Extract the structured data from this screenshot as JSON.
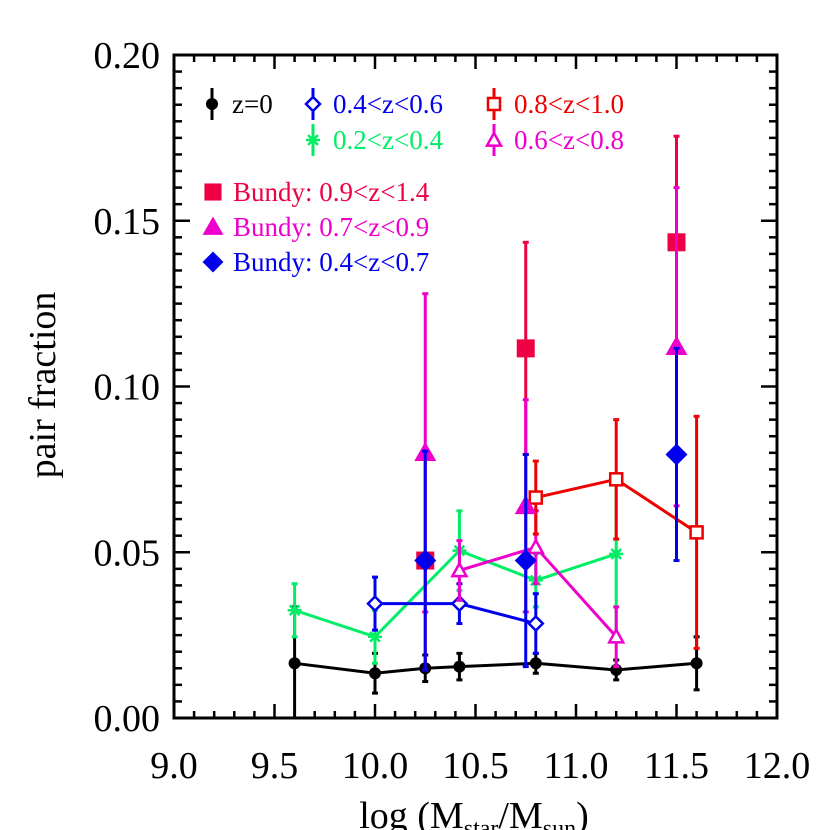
{
  "chart_data": {
    "type": "line",
    "ylabel": "pair fraction",
    "xlabel": "log (M",
    "xlabel_sub1": "star",
    "xlabel_mid": "/M",
    "xlabel_sub2": "sun",
    "xlabel_end": ")",
    "xlim": [
      9.0,
      12.0
    ],
    "ylim": [
      0.0,
      0.2
    ],
    "x_ticks": [
      9.0,
      9.5,
      10.0,
      10.5,
      11.0,
      11.5,
      12.0
    ],
    "x_tick_labels": [
      "9.0",
      "9.5",
      "10.0",
      "10.5",
      "11.0",
      "11.5",
      "12.0"
    ],
    "y_ticks": [
      0.0,
      0.05,
      0.1,
      0.15,
      0.2
    ],
    "y_tick_labels": [
      "0.00",
      "0.05",
      "0.10",
      "0.15",
      "0.20"
    ],
    "legend_position": "top-left",
    "series": [
      {
        "name": "z=0",
        "color": "#000000",
        "marker": "filled-circle",
        "line": true,
        "x": [
          9.6,
          10.0,
          10.25,
          10.42,
          10.8,
          11.2,
          11.6
        ],
        "y": [
          0.0165,
          0.0135,
          0.015,
          0.0155,
          0.0165,
          0.0145,
          0.0165
        ],
        "err": [
          0.017,
          0.006,
          0.004,
          0.004,
          0.003,
          0.003,
          0.008
        ]
      },
      {
        "name": "0.2<z<0.4",
        "color": "#00ee66",
        "marker": "asterisk",
        "line": true,
        "x": [
          9.6,
          10.0,
          10.42,
          10.8,
          11.2
        ],
        "y": [
          0.0325,
          0.0245,
          0.0505,
          0.0415,
          0.0495
        ],
        "err": [
          0.008,
          0.008,
          0.012,
          0.008,
          0.024
        ]
      },
      {
        "name": "0.4<z<0.6",
        "color": "#0000ee",
        "marker": "open-diamond",
        "line": true,
        "x": [
          10.0,
          10.42,
          10.8
        ],
        "y": [
          0.0345,
          0.0345,
          0.0285
        ],
        "err": [
          0.008,
          0.006,
          0.009
        ]
      },
      {
        "name": "0.6<z<0.8",
        "color": "#ee00cc",
        "marker": "open-triangle",
        "line": true,
        "x": [
          10.42,
          10.8,
          11.2
        ],
        "y": [
          0.0445,
          0.0515,
          0.0245
        ],
        "err": [
          0.009,
          0.011,
          0.009
        ]
      },
      {
        "name": "0.8<z<1.0",
        "color": "#ee0000",
        "marker": "open-square",
        "line": true,
        "x": [
          10.8,
          11.2,
          11.6
        ],
        "y": [
          0.0665,
          0.072,
          0.056
        ],
        "err": [
          0.011,
          0.018,
          0.035
        ]
      },
      {
        "name": "Bundy: 0.9<z<1.4",
        "color": "#ee0044",
        "marker": "filled-square",
        "line": false,
        "x": [
          10.25,
          10.75,
          11.5
        ],
        "y": [
          0.0475,
          0.1115,
          0.1435
        ],
        "err": [
          0.033,
          0.032,
          0.032
        ]
      },
      {
        "name": "Bundy: 0.7<z<0.9",
        "color": "#ee00cc",
        "marker": "filled-triangle",
        "line": false,
        "x": [
          10.25,
          10.75,
          11.5
        ],
        "y": [
          0.08,
          0.064,
          0.112
        ],
        "err": [
          0.048,
          0.032,
          0.048
        ]
      },
      {
        "name": "Bundy: 0.4<z<0.7",
        "color": "#0000ee",
        "marker": "filled-diamond",
        "line": false,
        "x": [
          10.25,
          10.75,
          11.5
        ],
        "y": [
          0.0475,
          0.0475,
          0.0795
        ],
        "err": [
          0.033,
          0.032,
          0.032
        ]
      }
    ],
    "legend_rows": [
      [
        0,
        2,
        4
      ],
      [
        1,
        3
      ],
      [
        5
      ],
      [
        6
      ],
      [
        7
      ]
    ]
  }
}
